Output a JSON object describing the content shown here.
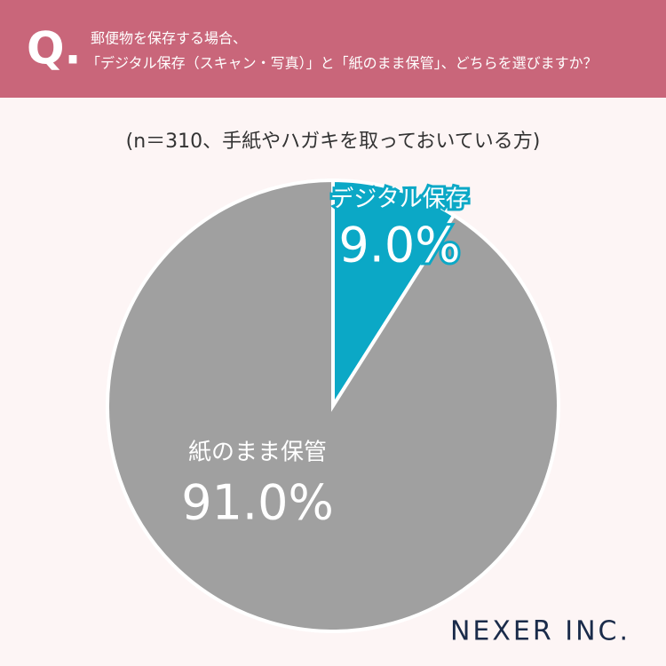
{
  "chart_data": {
    "type": "pie",
    "mark": "Q.",
    "title": [
      "郵便物を保存する場合、",
      "「デジタル保存（スキャン・写真）」と「紙のまま保管」、どちらを選びますか？"
    ],
    "subtitle": "(n＝310、手紙やハガキを取っておいている方)",
    "categories": [
      "デジタル保存",
      "紙のまま保管"
    ],
    "values": [
      9.0,
      91.0
    ],
    "value_labels": [
      "9.0%",
      "91.0%"
    ],
    "colors": [
      "#0ba8c6",
      "#a0a0a0"
    ],
    "logo": "NEXER INC."
  }
}
